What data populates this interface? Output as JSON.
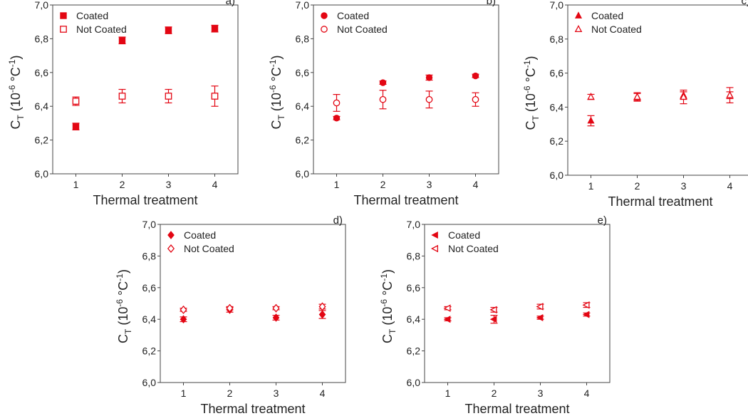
{
  "chart_data": [
    {
      "type": "scatter",
      "panel": "a)",
      "marker": "square",
      "xlabel": "Thermal treatment",
      "ylabel_main": "C",
      "ylabel_sub": "T",
      "ylabel_rest": " (10",
      "ylabel_exp1": "-6",
      "ylabel_mid": " °C",
      "ylabel_exp2": "-1",
      "ylabel_close": ")",
      "xlim": [
        0.5,
        4.5
      ],
      "ylim": [
        6.0,
        7.0
      ],
      "x_ticks": [
        "1",
        "2",
        "3",
        "4"
      ],
      "y_ticks": [
        "6,0",
        "6,2",
        "6,4",
        "6,6",
        "6,8",
        "7,0"
      ],
      "series": [
        {
          "name": "Coated",
          "filled": true,
          "x": [
            1,
            2,
            3,
            4
          ],
          "y": [
            6.28,
            6.79,
            6.85,
            6.86
          ],
          "err": [
            0.02,
            0.02,
            0.02,
            0.02
          ]
        },
        {
          "name": "Not Coated",
          "filled": false,
          "x": [
            1,
            2,
            3,
            4
          ],
          "y": [
            6.43,
            6.46,
            6.46,
            6.46
          ],
          "err": [
            0.025,
            0.04,
            0.04,
            0.06
          ]
        }
      ],
      "legend_position": "top-left",
      "grid": false
    },
    {
      "type": "scatter",
      "panel": "b)",
      "marker": "circle",
      "xlabel": "Thermal treatment",
      "ylabel_main": "C",
      "ylabel_sub": "T",
      "ylabel_rest": " (10",
      "ylabel_exp1": "-6",
      "ylabel_mid": " °C",
      "ylabel_exp2": "-1",
      "ylabel_close": ")",
      "xlim": [
        0.5,
        4.5
      ],
      "ylim": [
        6.0,
        7.0
      ],
      "x_ticks": [
        "1",
        "2",
        "3",
        "4"
      ],
      "y_ticks": [
        "6,0",
        "6,2",
        "6,4",
        "6,6",
        "6,8",
        "7,0"
      ],
      "series": [
        {
          "name": "Coated",
          "filled": true,
          "x": [
            1,
            2,
            3,
            4
          ],
          "y": [
            6.33,
            6.54,
            6.57,
            6.58
          ],
          "err": [
            0.01,
            0.01,
            0.015,
            0.01
          ]
        },
        {
          "name": "Not Coated",
          "filled": false,
          "x": [
            1,
            2,
            3,
            4
          ],
          "y": [
            6.42,
            6.44,
            6.44,
            6.44
          ],
          "err": [
            0.05,
            0.055,
            0.05,
            0.04
          ]
        }
      ],
      "legend_position": "top-left",
      "grid": false
    },
    {
      "type": "scatter",
      "panel": "c)",
      "marker": "triangle-up",
      "xlabel": "Thermal treatment",
      "ylabel_main": "C",
      "ylabel_sub": "T",
      "ylabel_rest": " (10",
      "ylabel_exp1": "-6",
      "ylabel_mid": " °C",
      "ylabel_exp2": "-1",
      "ylabel_close": ")",
      "xlim": [
        0.5,
        4.5
      ],
      "ylim": [
        6.0,
        7.0
      ],
      "x_ticks": [
        "1",
        "2",
        "3",
        "4"
      ],
      "y_ticks": [
        "6,0",
        "6,2",
        "6,4",
        "6,6",
        "6,8",
        "7,0"
      ],
      "series": [
        {
          "name": "Coated",
          "filled": true,
          "x": [
            1,
            2,
            3,
            4
          ],
          "y": [
            6.32,
            6.46,
            6.47,
            6.47
          ],
          "err": [
            0.03,
            0.02,
            0.02,
            0.02
          ]
        },
        {
          "name": "Not Coated",
          "filled": false,
          "x": [
            1,
            2,
            3,
            4
          ],
          "y": [
            6.46,
            6.46,
            6.46,
            6.47
          ],
          "err": [
            0.015,
            0.025,
            0.04,
            0.045
          ]
        }
      ],
      "legend_position": "top-left",
      "grid": false
    },
    {
      "type": "scatter",
      "panel": "d)",
      "marker": "diamond",
      "xlabel": "Thermal treatment",
      "ylabel_main": "C",
      "ylabel_sub": "T",
      "ylabel_rest": " (10",
      "ylabel_exp1": "-6",
      "ylabel_mid": " °C",
      "ylabel_exp2": "-1",
      "ylabel_close": ")",
      "xlim": [
        0.5,
        4.5
      ],
      "ylim": [
        6.0,
        7.0
      ],
      "x_ticks": [
        "1",
        "2",
        "3",
        "4"
      ],
      "y_ticks": [
        "6,0",
        "6,2",
        "6,4",
        "6,6",
        "6,8",
        "7,0"
      ],
      "series": [
        {
          "name": "Coated",
          "filled": true,
          "x": [
            1,
            2,
            3,
            4
          ],
          "y": [
            6.4,
            6.46,
            6.41,
            6.43
          ],
          "err": [
            0.015,
            0.015,
            0.015,
            0.025
          ]
        },
        {
          "name": "Not Coated",
          "filled": false,
          "x": [
            1,
            2,
            3,
            4
          ],
          "y": [
            6.46,
            6.47,
            6.47,
            6.48
          ],
          "err": [
            0.01,
            0.01,
            0.01,
            0.015
          ]
        }
      ],
      "legend_position": "top-left",
      "grid": false
    },
    {
      "type": "scatter",
      "panel": "e)",
      "marker": "triangle-left",
      "xlabel": "Thermal treatment",
      "ylabel_main": "C",
      "ylabel_sub": "T",
      "ylabel_rest": " (10",
      "ylabel_exp1": "-6",
      "ylabel_mid": " °C",
      "ylabel_exp2": "-1",
      "ylabel_close": ")",
      "xlim": [
        0.5,
        4.5
      ],
      "ylim": [
        6.0,
        7.0
      ],
      "x_ticks": [
        "1",
        "2",
        "3",
        "4"
      ],
      "y_ticks": [
        "6,0",
        "6,2",
        "6,4",
        "6,6",
        "6,8",
        "7,0"
      ],
      "series": [
        {
          "name": "Coated",
          "filled": true,
          "x": [
            1,
            2,
            3,
            4
          ],
          "y": [
            6.4,
            6.4,
            6.41,
            6.43
          ],
          "err": [
            0.01,
            0.025,
            0.01,
            0.01
          ]
        },
        {
          "name": "Not Coated",
          "filled": false,
          "x": [
            1,
            2,
            3,
            4
          ],
          "y": [
            6.47,
            6.46,
            6.48,
            6.49
          ],
          "err": [
            0.01,
            0.015,
            0.015,
            0.015
          ]
        }
      ],
      "legend_position": "top-left",
      "grid": false
    }
  ],
  "colors": {
    "marker": "#e30613",
    "axis": "#444444",
    "text": "#222222"
  }
}
